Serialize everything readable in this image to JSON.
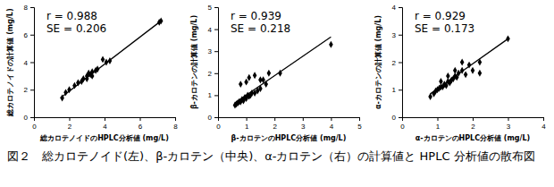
{
  "caption": "図２　総カロテノイド(左)、β-カロテン（中央)、α-カロテン（右）の計算値と HPLC 分析値の散布図",
  "chart_data": [
    {
      "type": "scatter",
      "x_label": "総カロテノイドのHPLC分析値 (mg/L)",
      "y_label": "総カロテノイドの計算値 (mg/L)",
      "annotations": [
        "r = 0.988",
        "SE = 0.206"
      ],
      "xlim": [
        0,
        8
      ],
      "ylim": [
        0,
        8
      ],
      "xticks": [
        0,
        2,
        4,
        6,
        8
      ],
      "yticks": [
        0,
        2,
        4,
        6,
        8
      ],
      "series": [
        {
          "type": "scatter",
          "marker": "diamond",
          "color": "#000000",
          "x": [
            1.6,
            1.8,
            2.0,
            2.3,
            2.5,
            2.7,
            2.8,
            3.0,
            3.1,
            3.2,
            3.3,
            3.5,
            3.3,
            3.0,
            3.6,
            3.9,
            4.1,
            4.3,
            7.1,
            7.2
          ],
          "values": [
            1.4,
            1.8,
            2.0,
            2.3,
            2.5,
            2.6,
            2.8,
            3.0,
            3.2,
            3.1,
            3.3,
            3.4,
            3.0,
            2.8,
            3.5,
            4.2,
            4.0,
            4.1,
            6.9,
            7.0
          ]
        },
        {
          "type": "line",
          "line_style": "solid",
          "color": "#000000",
          "x": [
            1.5,
            7.2
          ],
          "values": [
            1.4,
            7.0
          ]
        }
      ]
    },
    {
      "type": "scatter",
      "x_label": "β-カロテンのHPLC分析値 (mg/L)",
      "y_label": "β-カロテンの計算値 (mg/L)",
      "annotations": [
        "r = 0.939",
        "SE = 0.218"
      ],
      "xlim": [
        0,
        5
      ],
      "ylim": [
        0,
        5
      ],
      "xticks": [
        0,
        1,
        2,
        3,
        4,
        5
      ],
      "yticks": [
        0,
        1,
        2,
        3,
        4,
        5
      ],
      "series": [
        {
          "type": "scatter",
          "marker": "diamond",
          "color": "#000000",
          "x": [
            0.6,
            0.65,
            0.7,
            0.75,
            0.8,
            0.85,
            0.9,
            0.95,
            1.0,
            1.05,
            1.1,
            1.15,
            1.2,
            1.3,
            1.4,
            1.5,
            0.8,
            1.0,
            1.1,
            1.3,
            1.5,
            1.6,
            1.7,
            1.8,
            2.2,
            4.0
          ],
          "values": [
            0.55,
            0.6,
            0.65,
            0.7,
            0.7,
            0.8,
            0.75,
            0.9,
            0.85,
            1.0,
            0.95,
            1.0,
            1.1,
            1.1,
            1.2,
            1.3,
            1.5,
            1.6,
            1.8,
            1.9,
            1.7,
            1.7,
            1.5,
            2.0,
            2.0,
            3.3
          ]
        },
        {
          "type": "line",
          "line_style": "solid",
          "color": "#000000",
          "x": [
            0.6,
            4.0
          ],
          "values": [
            0.65,
            3.65
          ]
        }
      ]
    },
    {
      "type": "scatter",
      "x_label": "α-カロテンのHPLC分析値 (mg/L)",
      "y_label": "α-カロテンの計算値 (mg/L)",
      "annotations": [
        "r = 0.929",
        "SE = 0.173"
      ],
      "xlim": [
        0,
        4
      ],
      "ylim": [
        0,
        4
      ],
      "xticks": [
        0,
        1,
        2,
        3,
        4
      ],
      "yticks": [
        0,
        1,
        2,
        3,
        4
      ],
      "series": [
        {
          "type": "scatter",
          "marker": "diamond",
          "color": "#000000",
          "x": [
            0.8,
            0.9,
            0.95,
            1.0,
            1.05,
            1.1,
            1.15,
            1.2,
            1.25,
            1.3,
            1.35,
            1.4,
            1.45,
            1.5,
            1.55,
            1.6,
            1.7,
            1.8,
            1.9,
            2.0,
            2.2,
            2.2,
            1.1,
            1.3,
            1.5,
            1.7,
            3.0
          ],
          "values": [
            0.75,
            0.85,
            0.95,
            1.0,
            1.05,
            1.1,
            1.1,
            1.2,
            1.15,
            1.3,
            1.25,
            1.35,
            1.4,
            1.5,
            1.45,
            1.6,
            1.7,
            1.55,
            1.9,
            1.7,
            1.6,
            2.0,
            1.3,
            1.5,
            1.7,
            2.0,
            2.85
          ]
        },
        {
          "type": "line",
          "line_style": "solid",
          "color": "#000000",
          "x": [
            0.8,
            3.0
          ],
          "values": [
            0.85,
            2.85
          ]
        }
      ]
    }
  ]
}
